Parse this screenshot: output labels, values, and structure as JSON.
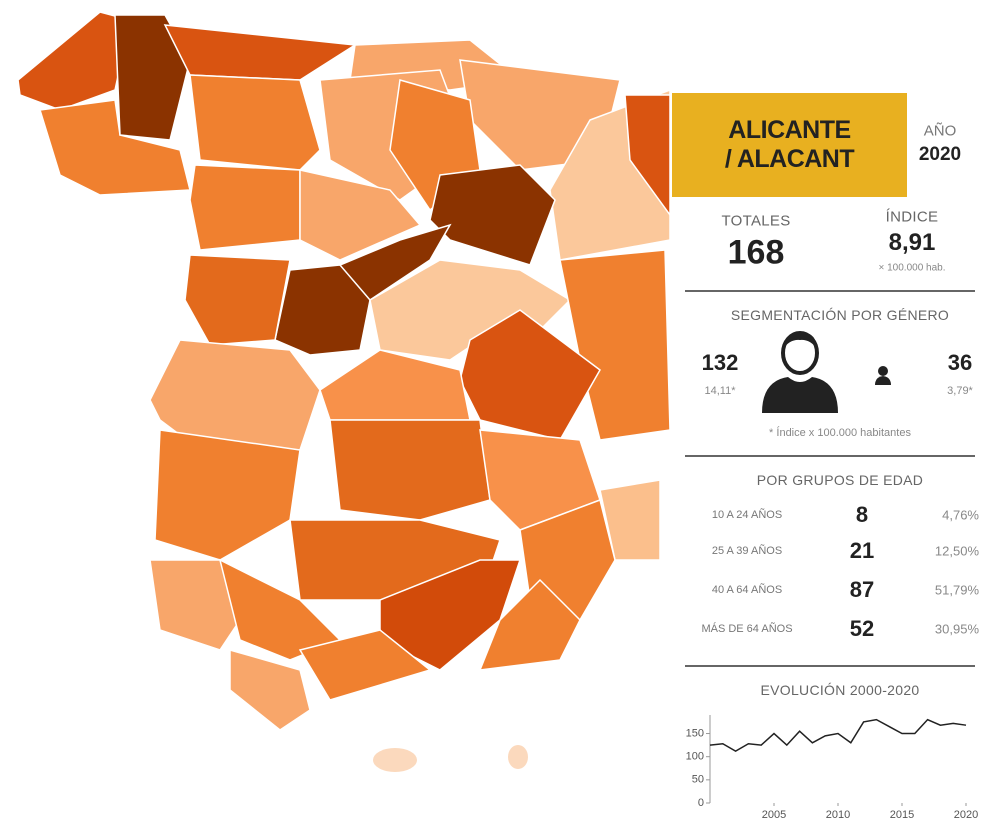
{
  "header": {
    "title": "ALICANTE / ALACANT",
    "year_label": "AÑO",
    "year": 2020
  },
  "totals": {
    "label": "TOTALES",
    "value": 168
  },
  "index": {
    "label": "ÍNDICE",
    "value": "8,91",
    "unit": "× 100.000 hab."
  },
  "gender": {
    "title": "SEGMENTACIÓN POR GÉNERO",
    "male": {
      "value": 132,
      "index": "14,11*"
    },
    "female": {
      "value": 36,
      "index": "3,79*"
    },
    "note": "* Índice x 100.000 habitantes"
  },
  "age_groups": {
    "title": "POR GRUPOS DE EDAD",
    "rows": [
      {
        "label": "10 A 24 AÑOS",
        "value": 8,
        "percent": "4,76%"
      },
      {
        "label": "25 A 39 AÑOS",
        "value": 21,
        "percent": "12,50%"
      },
      {
        "label": "40 A 64 AÑOS",
        "value": 87,
        "percent": "51,79%"
      },
      {
        "label": "MÁS DE 64 AÑOS",
        "value": 52,
        "percent": "30,95%"
      }
    ]
  },
  "chart_data": {
    "type": "line",
    "title": "EVOLUCIÓN 2000-2020",
    "x": [
      2000,
      2001,
      2002,
      2003,
      2004,
      2005,
      2006,
      2007,
      2008,
      2009,
      2010,
      2011,
      2012,
      2013,
      2014,
      2015,
      2016,
      2017,
      2018,
      2019,
      2020
    ],
    "values": [
      125,
      128,
      112,
      128,
      125,
      150,
      125,
      155,
      130,
      145,
      150,
      130,
      175,
      180,
      165,
      150,
      150,
      180,
      168,
      172,
      168
    ],
    "color": "#222222",
    "xlim": [
      2000,
      2020
    ],
    "xticks": [
      2005,
      2010,
      2015,
      2020
    ],
    "ylim": [
      0,
      190
    ],
    "yticks": [
      0,
      50,
      100,
      150
    ]
  }
}
